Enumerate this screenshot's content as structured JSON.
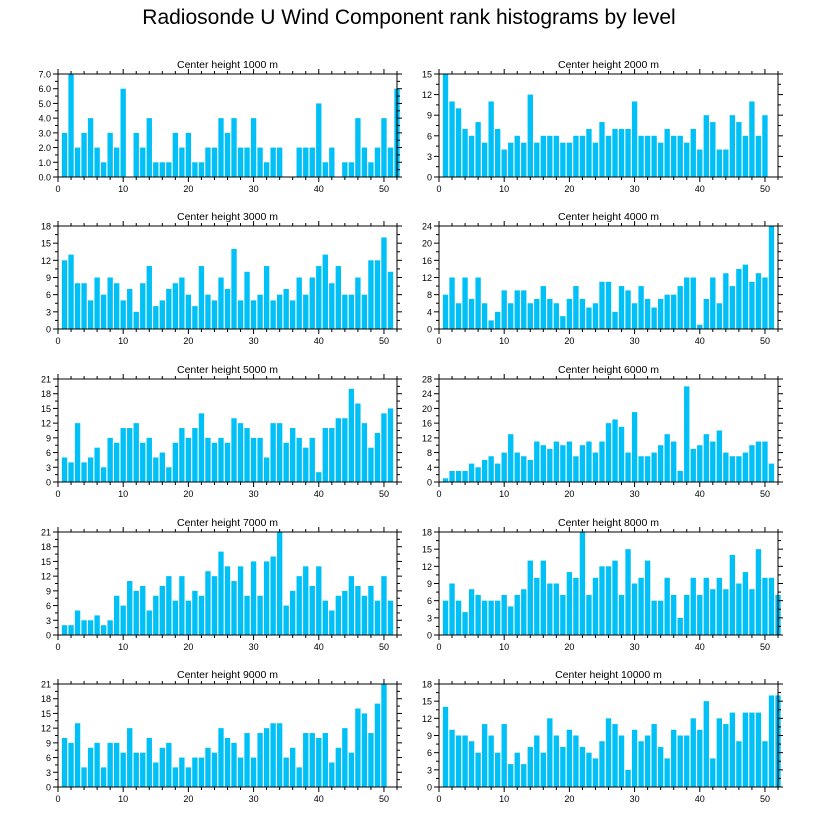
{
  "title": "Radiosonde U Wind Component rank histograms by level",
  "colors": {
    "bar": "#00c0f8",
    "axis": "#000000",
    "background": "#ffffff"
  },
  "chart_data": [
    {
      "type": "bar",
      "title": "Center height 1000 m",
      "ylim": [
        0,
        7
      ],
      "yticks": [
        0,
        1,
        2,
        3,
        4,
        5,
        6,
        7
      ],
      "ytick_labels": [
        "0.0",
        "1.0",
        "2.0",
        "3.0",
        "4.0",
        "5.0",
        "6.0",
        "7.0"
      ],
      "xlim": [
        0,
        52
      ],
      "xticks": [
        0,
        10,
        20,
        30,
        40,
        50
      ],
      "values": [
        3,
        7,
        2,
        3,
        4,
        2,
        1,
        3,
        2,
        6,
        0,
        3,
        2,
        4,
        1,
        1,
        1,
        3,
        2,
        3,
        1,
        1,
        2,
        2,
        4,
        3,
        4,
        2,
        2,
        4,
        2,
        1,
        2,
        2,
        0,
        0,
        2,
        2,
        2,
        5,
        1,
        2,
        0,
        1,
        1,
        4,
        2,
        1,
        2,
        4,
        2,
        6
      ]
    },
    {
      "type": "bar",
      "title": "Center height 2000 m",
      "ylim": [
        0,
        15
      ],
      "yticks": [
        0,
        3,
        6,
        9,
        12,
        15
      ],
      "ytick_labels": [
        "0",
        "3",
        "6",
        "9",
        "12",
        "15"
      ],
      "xlim": [
        0,
        52
      ],
      "xticks": [
        0,
        10,
        20,
        30,
        40,
        50
      ],
      "values": [
        15,
        11,
        10,
        7,
        6,
        8,
        5,
        11,
        7,
        4,
        5,
        6,
        5,
        12,
        5,
        6,
        6,
        6,
        5,
        5,
        6,
        6,
        7,
        5,
        8,
        6,
        7,
        7,
        7,
        11,
        6,
        6,
        6,
        5,
        7,
        6,
        6,
        5,
        7,
        4,
        9,
        8,
        4,
        4,
        9,
        8,
        6,
        11,
        6,
        9
      ]
    },
    {
      "type": "bar",
      "title": "Center height 3000 m",
      "ylim": [
        0,
        18
      ],
      "yticks": [
        0,
        3,
        6,
        9,
        12,
        15,
        18
      ],
      "ytick_labels": [
        "0",
        "3",
        "6",
        "9",
        "12",
        "15",
        "18"
      ],
      "xlim": [
        0,
        52
      ],
      "xticks": [
        0,
        10,
        20,
        30,
        40,
        50
      ],
      "values": [
        12,
        13,
        8,
        8,
        5,
        9,
        6,
        9,
        8,
        5,
        7,
        3,
        8,
        11,
        4,
        5,
        7,
        8,
        9,
        6,
        4,
        11,
        6,
        5,
        9,
        7,
        14,
        5,
        10,
        5,
        6,
        11,
        5,
        6,
        7,
        5,
        9,
        6,
        9,
        11,
        13,
        8,
        11,
        6,
        6,
        9,
        6,
        12,
        12,
        16,
        10
      ]
    },
    {
      "type": "bar",
      "title": "Center height 4000 m",
      "ylim": [
        0,
        24
      ],
      "yticks": [
        0,
        4,
        8,
        12,
        16,
        20,
        24
      ],
      "ytick_labels": [
        "0",
        "4",
        "8",
        "12",
        "16",
        "20",
        "24"
      ],
      "xlim": [
        0,
        52
      ],
      "xticks": [
        0,
        10,
        20,
        30,
        40,
        50
      ],
      "values": [
        8,
        12,
        6,
        12,
        7,
        12,
        6,
        2,
        4,
        9,
        6,
        9,
        9,
        6,
        7,
        10,
        7,
        6,
        3,
        7,
        10,
        7,
        5,
        6,
        11,
        11,
        4,
        10,
        9,
        6,
        10,
        7,
        5,
        7,
        8,
        8,
        10,
        12,
        12,
        1,
        7,
        12,
        6,
        13,
        10,
        14,
        15,
        11,
        13,
        12,
        24
      ]
    },
    {
      "type": "bar",
      "title": "Center height 5000 m",
      "ylim": [
        0,
        21
      ],
      "yticks": [
        0,
        3,
        6,
        9,
        12,
        15,
        18,
        21
      ],
      "ytick_labels": [
        "0",
        "3",
        "6",
        "9",
        "12",
        "15",
        "18",
        "21"
      ],
      "xlim": [
        0,
        52
      ],
      "xticks": [
        0,
        10,
        20,
        30,
        40,
        50
      ],
      "values": [
        5,
        4,
        12,
        4,
        5,
        7,
        3,
        9,
        8,
        11,
        11,
        12,
        8,
        9,
        5,
        6,
        3,
        8,
        11,
        9,
        11,
        14,
        9,
        8,
        9,
        8,
        13,
        12,
        11,
        9,
        9,
        5,
        12,
        12,
        8,
        11,
        9,
        7,
        9,
        2,
        11,
        11,
        13,
        13,
        19,
        16,
        12,
        7,
        10,
        14,
        15
      ]
    },
    {
      "type": "bar",
      "title": "Center height 6000 m",
      "ylim": [
        0,
        28
      ],
      "yticks": [
        0,
        4,
        8,
        12,
        16,
        20,
        24,
        28
      ],
      "ytick_labels": [
        "0",
        "4",
        "8",
        "12",
        "16",
        "20",
        "24",
        "28"
      ],
      "xlim": [
        0,
        52
      ],
      "xticks": [
        0,
        10,
        20,
        30,
        40,
        50
      ],
      "values": [
        1,
        3,
        3,
        3,
        5,
        4,
        6,
        7,
        5,
        8,
        13,
        8,
        7,
        6,
        11,
        10,
        9,
        11,
        10,
        11,
        7,
        10,
        11,
        8,
        11,
        16,
        17,
        15,
        8,
        19,
        7,
        7,
        8,
        10,
        13,
        11,
        3,
        26,
        9,
        10,
        13,
        11,
        14,
        8,
        7,
        7,
        8,
        10,
        11,
        11,
        5
      ]
    },
    {
      "type": "bar",
      "title": "Center height 7000 m",
      "ylim": [
        0,
        21
      ],
      "yticks": [
        0,
        3,
        6,
        9,
        12,
        15,
        18,
        21
      ],
      "ytick_labels": [
        "0",
        "3",
        "6",
        "9",
        "12",
        "15",
        "18",
        "21"
      ],
      "xlim": [
        0,
        52
      ],
      "xticks": [
        0,
        10,
        20,
        30,
        40,
        50
      ],
      "values": [
        2,
        2,
        5,
        3,
        3,
        4,
        2,
        3,
        8,
        6,
        11,
        9,
        10,
        5,
        8,
        10,
        12,
        7,
        12,
        7,
        9,
        8,
        13,
        12,
        17,
        14,
        11,
        14,
        8,
        15,
        8,
        15,
        16,
        21,
        6,
        9,
        12,
        14,
        10,
        14,
        7,
        5,
        8,
        9,
        12,
        10,
        8,
        10,
        7,
        12,
        7
      ]
    },
    {
      "type": "bar",
      "title": "Center height 8000 m",
      "ylim": [
        0,
        18
      ],
      "yticks": [
        0,
        3,
        6,
        9,
        12,
        15,
        18
      ],
      "ytick_labels": [
        "0",
        "3",
        "6",
        "9",
        "12",
        "15",
        "18"
      ],
      "xlim": [
        0,
        52
      ],
      "xticks": [
        0,
        10,
        20,
        30,
        40,
        50
      ],
      "values": [
        6,
        9,
        6,
        4,
        8,
        7,
        6,
        6,
        6,
        7,
        5,
        7,
        8,
        13,
        10,
        13,
        9,
        9,
        7,
        11,
        10,
        18,
        7,
        10,
        12,
        12,
        13,
        7,
        15,
        9,
        10,
        13,
        6,
        6,
        10,
        7,
        3,
        7,
        10,
        7,
        10,
        8,
        10,
        8,
        14,
        9,
        11,
        8,
        15,
        10,
        10,
        7
      ]
    },
    {
      "type": "bar",
      "title": "Center height 9000 m",
      "ylim": [
        0,
        21
      ],
      "yticks": [
        0,
        3,
        6,
        9,
        12,
        15,
        18,
        21
      ],
      "ytick_labels": [
        "0",
        "3",
        "6",
        "9",
        "12",
        "15",
        "18",
        "21"
      ],
      "xlim": [
        0,
        52
      ],
      "xticks": [
        0,
        10,
        20,
        30,
        40,
        50
      ],
      "values": [
        10,
        9,
        13,
        4,
        8,
        9,
        4,
        9,
        9,
        7,
        12,
        7,
        7,
        10,
        5,
        8,
        9,
        4,
        6,
        4,
        6,
        6,
        8,
        7,
        12,
        10,
        9,
        6,
        11,
        6,
        11,
        12,
        13,
        13,
        6,
        8,
        4,
        11,
        11,
        10,
        11,
        5,
        8,
        12,
        7,
        16,
        15,
        11,
        17,
        21
      ]
    },
    {
      "type": "bar",
      "title": "Center height 10000 m",
      "ylim": [
        0,
        18
      ],
      "yticks": [
        0,
        3,
        6,
        9,
        12,
        15,
        18
      ],
      "ytick_labels": [
        "0",
        "3",
        "6",
        "9",
        "12",
        "15",
        "18"
      ],
      "xlim": [
        0,
        52
      ],
      "xticks": [
        0,
        10,
        20,
        30,
        40,
        50
      ],
      "values": [
        14,
        10,
        9,
        9,
        8,
        6,
        11,
        9,
        6,
        11,
        4,
        6,
        4,
        7,
        9,
        6,
        12,
        9,
        7,
        10,
        9,
        7,
        6,
        5,
        8,
        12,
        11,
        9,
        3,
        10,
        8,
        9,
        11,
        7,
        5,
        10,
        9,
        9,
        12,
        10,
        15,
        5,
        12,
        11,
        13,
        8,
        13,
        13,
        13,
        8,
        16,
        16
      ]
    }
  ]
}
